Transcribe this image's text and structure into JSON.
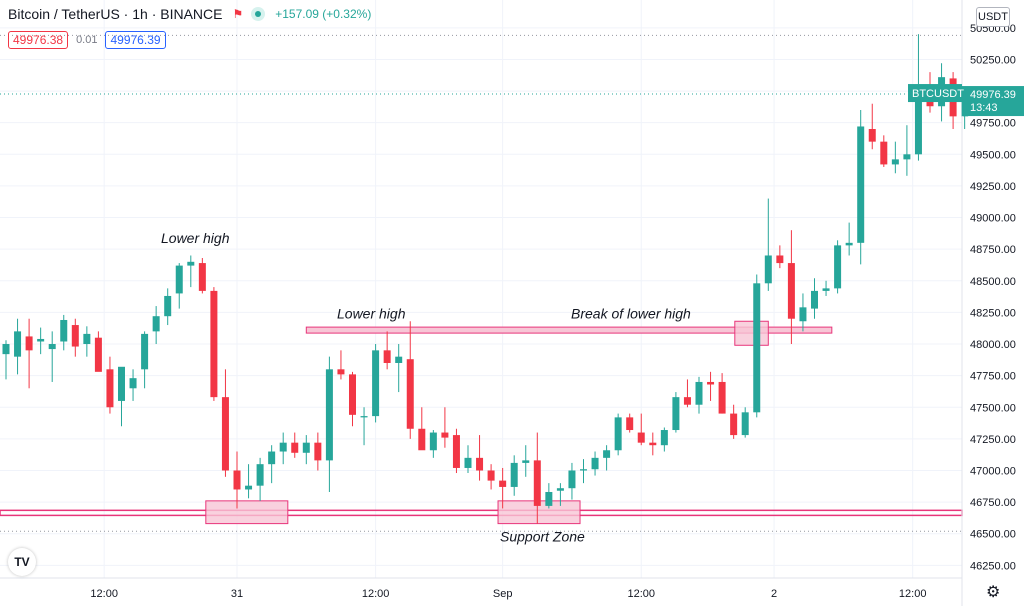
{
  "header": {
    "symbol_title": "Bitcoin / TetherUS · 1h · BINANCE",
    "change": "+157.09 (+0.32%)",
    "bid": "49976.38",
    "spread": "0.01",
    "ask": "49976.39"
  },
  "currency_button": "USDT",
  "colors": {
    "up": "#26a69a",
    "down": "#f23645",
    "zone": "#e8357a",
    "zone_fill": "#f7c6d6"
  },
  "icons": {
    "flag": "flag-icon",
    "logo": "tradingview-logo-icon",
    "settings": "gear-icon",
    "status": "status-dot-icon"
  },
  "chart_data": {
    "type": "candlestick",
    "symbol": "BTCUSDT",
    "interval": "1h",
    "ylim": [
      46150,
      50720
    ],
    "y_ticks": [
      46250,
      46500,
      46750,
      47000,
      47250,
      47500,
      47750,
      48000,
      48250,
      48500,
      48750,
      49000,
      49250,
      49500,
      49750,
      50000,
      50250,
      50500
    ],
    "y_tick_labels": [
      "46250.00",
      "46500.00",
      "46750.00",
      "47000.00",
      "47250.00",
      "47500.00",
      "47750.00",
      "48000.00",
      "48250.00",
      "48500.00",
      "48750.00",
      "49000.00",
      "49250.00",
      "49500.00",
      "49750.00",
      "50000.00",
      "50250.00",
      "50500.00"
    ],
    "x_labels": [
      {
        "label": "12:00",
        "index": 8.5
      },
      {
        "label": "31",
        "index": 20
      },
      {
        "label": "12:00",
        "index": 32
      },
      {
        "label": "Sep",
        "index": 43
      },
      {
        "label": "12:00",
        "index": 55
      },
      {
        "label": "2",
        "index": 66.5
      },
      {
        "label": "12:00",
        "index": 78.5
      }
    ],
    "last_price": {
      "label": "BTCUSDT",
      "value": 49976.39,
      "price_text": "49976.39",
      "countdown": "13:43"
    },
    "high_line": 50440,
    "candles": [
      {
        "o": 47920,
        "h": 48030,
        "l": 47720,
        "c": 48000
      },
      {
        "o": 47900,
        "h": 48200,
        "l": 47760,
        "c": 48100
      },
      {
        "o": 48060,
        "h": 48200,
        "l": 47650,
        "c": 47950
      },
      {
        "o": 48020,
        "h": 48130,
        "l": 47920,
        "c": 48040
      },
      {
        "o": 47960,
        "h": 48100,
        "l": 47700,
        "c": 48000
      },
      {
        "o": 48020,
        "h": 48230,
        "l": 47950,
        "c": 48190
      },
      {
        "o": 48150,
        "h": 48200,
        "l": 47900,
        "c": 47980
      },
      {
        "o": 48000,
        "h": 48140,
        "l": 47900,
        "c": 48080
      },
      {
        "o": 48050,
        "h": 48100,
        "l": 47800,
        "c": 47780
      },
      {
        "o": 47800,
        "h": 47900,
        "l": 47450,
        "c": 47500
      },
      {
        "o": 47550,
        "h": 47800,
        "l": 47350,
        "c": 47820
      },
      {
        "o": 47650,
        "h": 47800,
        "l": 47550,
        "c": 47730
      },
      {
        "o": 47800,
        "h": 48100,
        "l": 47650,
        "c": 48080
      },
      {
        "o": 48100,
        "h": 48300,
        "l": 48000,
        "c": 48220
      },
      {
        "o": 48220,
        "h": 48440,
        "l": 48150,
        "c": 48380
      },
      {
        "o": 48400,
        "h": 48640,
        "l": 48280,
        "c": 48620
      },
      {
        "o": 48620,
        "h": 48700,
        "l": 48450,
        "c": 48650
      },
      {
        "o": 48640,
        "h": 48680,
        "l": 48400,
        "c": 48420
      },
      {
        "o": 48420,
        "h": 48450,
        "l": 47550,
        "c": 47580
      },
      {
        "o": 47580,
        "h": 47800,
        "l": 46950,
        "c": 47000
      },
      {
        "o": 47000,
        "h": 47150,
        "l": 46700,
        "c": 46850
      },
      {
        "o": 46850,
        "h": 47050,
        "l": 46780,
        "c": 46880
      },
      {
        "o": 46880,
        "h": 47100,
        "l": 46760,
        "c": 47050
      },
      {
        "o": 47050,
        "h": 47200,
        "l": 46900,
        "c": 47150
      },
      {
        "o": 47150,
        "h": 47300,
        "l": 47050,
        "c": 47220
      },
      {
        "o": 47220,
        "h": 47300,
        "l": 47100,
        "c": 47140
      },
      {
        "o": 47140,
        "h": 47280,
        "l": 47050,
        "c": 47220
      },
      {
        "o": 47220,
        "h": 47300,
        "l": 47000,
        "c": 47080
      },
      {
        "o": 47080,
        "h": 47900,
        "l": 46830,
        "c": 47800
      },
      {
        "o": 47800,
        "h": 47950,
        "l": 47720,
        "c": 47760
      },
      {
        "o": 47760,
        "h": 47780,
        "l": 47350,
        "c": 47440
      },
      {
        "o": 47420,
        "h": 47500,
        "l": 47200,
        "c": 47430
      },
      {
        "o": 47430,
        "h": 48000,
        "l": 47380,
        "c": 47950
      },
      {
        "o": 47950,
        "h": 48100,
        "l": 47800,
        "c": 47850
      },
      {
        "o": 47850,
        "h": 48000,
        "l": 47620,
        "c": 47900
      },
      {
        "o": 47880,
        "h": 48180,
        "l": 47250,
        "c": 47330
      },
      {
        "o": 47330,
        "h": 47500,
        "l": 47200,
        "c": 47160
      },
      {
        "o": 47160,
        "h": 47320,
        "l": 47100,
        "c": 47300
      },
      {
        "o": 47300,
        "h": 47500,
        "l": 47180,
        "c": 47260
      },
      {
        "o": 47280,
        "h": 47330,
        "l": 46980,
        "c": 47020
      },
      {
        "o": 47020,
        "h": 47200,
        "l": 46980,
        "c": 47100
      },
      {
        "o": 47100,
        "h": 47280,
        "l": 46920,
        "c": 47000
      },
      {
        "o": 47000,
        "h": 47050,
        "l": 46850,
        "c": 46920
      },
      {
        "o": 46920,
        "h": 47020,
        "l": 46700,
        "c": 46870
      },
      {
        "o": 46870,
        "h": 47120,
        "l": 46800,
        "c": 47060
      },
      {
        "o": 47060,
        "h": 47200,
        "l": 46950,
        "c": 47080
      },
      {
        "o": 47080,
        "h": 47300,
        "l": 46580,
        "c": 46720
      },
      {
        "o": 46720,
        "h": 46900,
        "l": 46700,
        "c": 46830
      },
      {
        "o": 46840,
        "h": 46900,
        "l": 46720,
        "c": 46860
      },
      {
        "o": 46860,
        "h": 47060,
        "l": 46770,
        "c": 47000
      },
      {
        "o": 47000,
        "h": 47090,
        "l": 46900,
        "c": 47010
      },
      {
        "o": 47010,
        "h": 47150,
        "l": 46960,
        "c": 47100
      },
      {
        "o": 47100,
        "h": 47200,
        "l": 47000,
        "c": 47160
      },
      {
        "o": 47160,
        "h": 47450,
        "l": 47120,
        "c": 47420
      },
      {
        "o": 47420,
        "h": 47450,
        "l": 47300,
        "c": 47320
      },
      {
        "o": 47300,
        "h": 47450,
        "l": 47200,
        "c": 47220
      },
      {
        "o": 47220,
        "h": 47300,
        "l": 47120,
        "c": 47200
      },
      {
        "o": 47200,
        "h": 47340,
        "l": 47150,
        "c": 47320
      },
      {
        "o": 47320,
        "h": 47620,
        "l": 47300,
        "c": 47580
      },
      {
        "o": 47580,
        "h": 47720,
        "l": 47500,
        "c": 47520
      },
      {
        "o": 47520,
        "h": 47740,
        "l": 47450,
        "c": 47700
      },
      {
        "o": 47700,
        "h": 47780,
        "l": 47550,
        "c": 47680
      },
      {
        "o": 47700,
        "h": 47770,
        "l": 47450,
        "c": 47450
      },
      {
        "o": 47450,
        "h": 47520,
        "l": 47250,
        "c": 47280
      },
      {
        "o": 47280,
        "h": 47500,
        "l": 47260,
        "c": 47460
      },
      {
        "o": 47460,
        "h": 48550,
        "l": 47420,
        "c": 48480
      },
      {
        "o": 48480,
        "h": 49150,
        "l": 48420,
        "c": 48700
      },
      {
        "o": 48700,
        "h": 48780,
        "l": 48600,
        "c": 48640
      },
      {
        "o": 48640,
        "h": 48900,
        "l": 48000,
        "c": 48200
      },
      {
        "o": 48180,
        "h": 48400,
        "l": 48100,
        "c": 48290
      },
      {
        "o": 48280,
        "h": 48520,
        "l": 48200,
        "c": 48420
      },
      {
        "o": 48420,
        "h": 48500,
        "l": 48380,
        "c": 48440
      },
      {
        "o": 48440,
        "h": 48820,
        "l": 48400,
        "c": 48780
      },
      {
        "o": 48780,
        "h": 48960,
        "l": 48700,
        "c": 48800
      },
      {
        "o": 48800,
        "h": 49850,
        "l": 48630,
        "c": 49720
      },
      {
        "o": 49700,
        "h": 49900,
        "l": 49540,
        "c": 49600
      },
      {
        "o": 49600,
        "h": 49650,
        "l": 49400,
        "c": 49420
      },
      {
        "o": 49420,
        "h": 49600,
        "l": 49350,
        "c": 49460
      },
      {
        "o": 49460,
        "h": 49730,
        "l": 49330,
        "c": 49500
      },
      {
        "o": 49500,
        "h": 50450,
        "l": 49450,
        "c": 49970
      },
      {
        "o": 49970,
        "h": 50150,
        "l": 49830,
        "c": 49880
      },
      {
        "o": 49880,
        "h": 50220,
        "l": 49760,
        "c": 50110
      },
      {
        "o": 50100,
        "h": 50150,
        "l": 49700,
        "c": 49800
      },
      {
        "o": 49800,
        "h": 50000,
        "l": 49700,
        "c": 49976
      }
    ],
    "support_lines": [
      46645,
      46685
    ],
    "annotations": {
      "lower_high_1": "Lower high",
      "lower_high_2": "Lower high",
      "break": "Break of lower high",
      "support": "Support Zone"
    },
    "resistance_line": 48110
  }
}
